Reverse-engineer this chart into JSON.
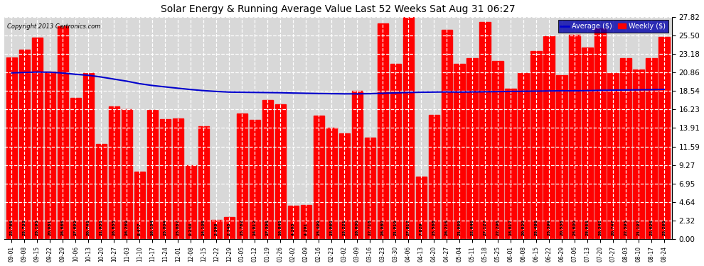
{
  "title": "Solar Energy & Running Average Value Last 52 Weeks Sat Aug 31 06:27",
  "copyright": "Copyright 2013 Cartronics.com",
  "bar_color": "#ff0000",
  "avg_line_color": "#0000cc",
  "background_color": "#ffffff",
  "plot_bg_color": "#d8d8d8",
  "grid_color": "#ffffff",
  "categories": [
    "09-01",
    "09-08",
    "09-15",
    "09-22",
    "09-29",
    "10-06",
    "10-13",
    "10-20",
    "10-27",
    "11-03",
    "11-10",
    "11-17",
    "11-24",
    "12-01",
    "12-08",
    "12-15",
    "12-22",
    "12-29",
    "01-05",
    "01-12",
    "01-19",
    "01-26",
    "02-02",
    "02-09",
    "02-16",
    "02-23",
    "03-02",
    "03-09",
    "03-16",
    "03-23",
    "03-30",
    "04-06",
    "04-13",
    "04-20",
    "04-27",
    "05-04",
    "05-11",
    "05-18",
    "05-25",
    "06-01",
    "06-08",
    "06-15",
    "06-22",
    "06-29",
    "07-06",
    "07-13",
    "07-20",
    "07-27",
    "08-03",
    "08-10",
    "08-17",
    "08-24"
  ],
  "weekly_values": [
    22.768,
    23.733,
    25.193,
    20.981,
    26.666,
    17.692,
    20.743,
    11.933,
    16.655,
    16.269,
    8.477,
    16.154,
    15.004,
    15.087,
    9.244,
    14.105,
    2.398,
    2.745,
    15.762,
    14.912,
    17.395,
    16.845,
    4.203,
    4.291,
    15.499,
    13.96,
    13.221,
    18.6,
    12.718,
    26.98,
    21.919,
    27.817,
    7.829,
    15.568,
    26.216,
    21.959,
    22.646,
    27.127,
    22.296,
    18.817,
    20.82,
    23.488,
    25.399,
    20.538,
    25.6,
    23.953,
    26.342,
    20.747,
    22.593,
    21.197,
    22.626,
    25.265
  ],
  "running_avg": [
    20.8,
    20.85,
    20.9,
    20.88,
    20.78,
    20.62,
    20.5,
    20.28,
    20.02,
    19.76,
    19.45,
    19.22,
    19.05,
    18.88,
    18.72,
    18.58,
    18.48,
    18.4,
    18.38,
    18.36,
    18.34,
    18.32,
    18.28,
    18.25,
    18.22,
    18.2,
    18.18,
    18.18,
    18.2,
    18.25,
    18.3,
    18.35,
    18.38,
    18.4,
    18.42,
    18.4,
    18.42,
    18.44,
    18.46,
    18.48,
    18.5,
    18.52,
    18.54,
    18.56,
    18.56,
    18.58,
    18.62,
    18.64,
    18.66,
    18.68,
    18.7,
    18.74
  ],
  "yticks": [
    0.0,
    2.32,
    4.64,
    6.95,
    9.27,
    11.59,
    13.91,
    16.23,
    18.54,
    20.86,
    23.18,
    25.5,
    27.82
  ],
  "ylim": [
    0,
    27.82
  ],
  "legend_avg_label": "Average ($)",
  "legend_weekly_label": "Weekly ($)",
  "legend_avg_color": "#0000cc",
  "legend_weekly_color": "#ff0000"
}
